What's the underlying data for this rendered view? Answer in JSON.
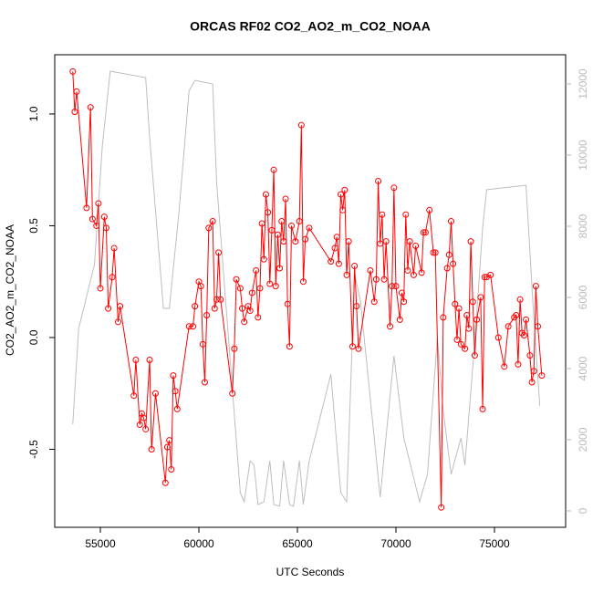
{
  "chart_data": {
    "type": "line",
    "title": "ORCAS RF02 CO2_AO2_m_CO2_NOAA",
    "x_label": "UTC Seconds",
    "y_label": "CO2_AO2_m_CO2_NOAA",
    "xlim": [
      52685,
      78611
    ],
    "ylim": [
      -0.849,
      1.265
    ],
    "y2lim": [
      -462,
      12821
    ],
    "xticks": [
      55000,
      60000,
      65000,
      70000,
      75000
    ],
    "yticks": [
      -0.5,
      {
        "value": 0,
        "label": "0.0"
      },
      0.5,
      {
        "value": 1,
        "label": "1.0"
      }
    ],
    "y2ticks": [
      0,
      2000,
      4000,
      6000,
      8000,
      10000,
      12000
    ],
    "series": [
      {
        "color": "#ff0000",
        "marker": "circle",
        "x": [
          53600,
          53700,
          53800,
          54300,
          54500,
          54600,
          54800,
          54900,
          55000,
          55200,
          55300,
          55400,
          55600,
          55700,
          55900,
          56000,
          56700,
          56800,
          57000,
          57100,
          57200,
          57300,
          57500,
          57600,
          57800,
          58300,
          58400,
          58500,
          58600,
          58700,
          58800,
          58900,
          59500,
          59700,
          59800,
          60000,
          60100,
          60200,
          60300,
          60400,
          60500,
          60700,
          60800,
          60900,
          61000,
          61100,
          61700,
          61800,
          61900,
          62100,
          62200,
          62300,
          62500,
          62600,
          62700,
          62900,
          63000,
          63100,
          63200,
          63300,
          63400,
          63500,
          63600,
          63700,
          63800,
          63900,
          64000,
          64100,
          64200,
          64300,
          64400,
          64500,
          64600,
          64700,
          64900,
          65100,
          65200,
          65300,
          65400,
          65600,
          66700,
          66900,
          67000,
          67100,
          67200,
          67300,
          67400,
          67500,
          67600,
          67800,
          67900,
          68000,
          68100,
          68700,
          68900,
          69000,
          69100,
          69200,
          69300,
          69400,
          69500,
          69700,
          69800,
          69900,
          70000,
          70200,
          70300,
          70400,
          70500,
          70600,
          70700,
          70900,
          71000,
          71300,
          71400,
          71500,
          71700,
          71900,
          72000,
          72300,
          72400,
          72600,
          72700,
          72800,
          72900,
          73000,
          73100,
          73200,
          73300,
          73500,
          73600,
          73700,
          73800,
          73900,
          74000,
          74100,
          74300,
          74400,
          74500,
          74600,
          74800,
          75200,
          75500,
          75700,
          76000,
          76100,
          76200,
          76300,
          76400,
          76500,
          76600,
          76800,
          76900,
          77000,
          77100,
          77200,
          77400
        ],
        "values": [
          1.19,
          1.01,
          1.1,
          0.58,
          1.03,
          0.53,
          0.5,
          0.6,
          0.22,
          0.54,
          0.49,
          0.13,
          0.27,
          0.4,
          0.07,
          0.14,
          -0.26,
          -0.1,
          -0.39,
          -0.34,
          -0.36,
          -0.41,
          -0.1,
          -0.5,
          -0.25,
          -0.65,
          -0.49,
          -0.46,
          -0.59,
          -0.17,
          -0.24,
          -0.32,
          0.05,
          0.05,
          0.14,
          0.25,
          0.23,
          -0.03,
          -0.2,
          0.1,
          0.49,
          0.52,
          0.13,
          0.17,
          0.38,
          0.17,
          -0.25,
          -0.05,
          0.26,
          0.22,
          0.13,
          0.07,
          0.14,
          0.12,
          0.2,
          0.3,
          0.09,
          0.22,
          0.51,
          0.35,
          0.64,
          0.56,
          0.24,
          0.48,
          0.75,
          0.23,
          0.46,
          0.31,
          0.52,
          0.43,
          0.62,
          0.15,
          -0.04,
          0.5,
          0.43,
          0.52,
          0.95,
          0.25,
          0.44,
          0.49,
          0.34,
          0.4,
          0.45,
          0.33,
          0.64,
          0.57,
          0.66,
          0.28,
          0.43,
          -0.04,
          0.32,
          0.14,
          -0.05,
          0.3,
          0.16,
          0.26,
          0.7,
          0.42,
          0.55,
          0.26,
          0.43,
          0.05,
          0.23,
          0.67,
          0.23,
          0.08,
          0.2,
          0.16,
          0.55,
          0.3,
          0.43,
          0.28,
          0.41,
          0.29,
          0.47,
          0.47,
          0.57,
          0.38,
          0.38,
          -0.76,
          0.09,
          0.31,
          0.37,
          0.52,
          0.33,
          0.15,
          -0.01,
          0.13,
          -0.03,
          -0.05,
          0.1,
          0.04,
          0.43,
          0.16,
          -0.08,
          0.08,
          0.18,
          -0.32,
          0.27,
          0.27,
          0.28,
          0.0,
          -0.13,
          0.05,
          0.09,
          0.1,
          -0.12,
          0.17,
          0.02,
          0.01,
          0.08,
          -0.08,
          -0.2,
          -0.15,
          0.23,
          0.05,
          -0.17
        ]
      },
      {
        "color": "#bebebe",
        "axis": "y2",
        "x": [
          53600,
          53900,
          54700,
          55100,
          55500,
          57300,
          57500,
          58200,
          58500,
          59000,
          59500,
          59800,
          60700,
          60900,
          62100,
          62300,
          62600,
          62800,
          63000,
          63300,
          63600,
          63800,
          64100,
          64300,
          64600,
          64800,
          65100,
          65300,
          65600,
          66700,
          67200,
          67500,
          67900,
          68200,
          69200,
          69900,
          70400,
          71200,
          71600,
          72100,
          72400,
          72800,
          73300,
          73500,
          74000,
          74400,
          74600,
          76600,
          77000,
          77300
        ],
        "values": [
          2436,
          5128,
          6923,
          10256,
          12359,
          12180,
          10500,
          5692,
          5692,
          8460,
          11800,
          12100,
          12000,
          9230,
          513,
          256,
          1410,
          1282,
          180,
          256,
          1410,
          180,
          128,
          1410,
          180,
          128,
          1410,
          180,
          1410,
          3846,
          513,
          256,
          6667,
          5897,
          385,
          4359,
          2051,
          256,
          1026,
          4872,
          2821,
          1026,
          2051,
          1282,
          4744,
          7949,
          9026,
          9154,
          5385,
          2949
        ]
      }
    ]
  }
}
